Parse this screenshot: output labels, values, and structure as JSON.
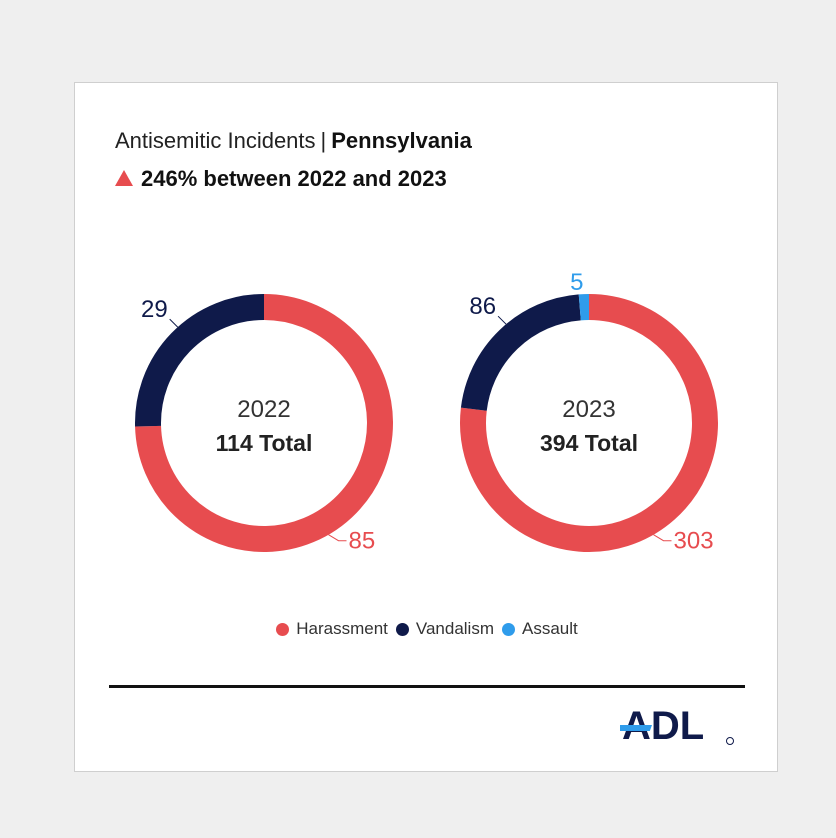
{
  "header": {
    "title_prefix": "Antisemitic Incidents",
    "title_separator": "|",
    "title_state": "Pennsylvania",
    "change_text": "246% between 2022 and 2023",
    "change_icon": "up-triangle-icon"
  },
  "colors": {
    "harassment": "#e74c4f",
    "vandalism": "#0f1a4a",
    "assault": "#2f9ceb"
  },
  "chart_data": [
    {
      "type": "pie",
      "donut": true,
      "year": "2022",
      "total_label": "114 Total",
      "series": [
        {
          "name": "Harassment",
          "value": 85,
          "label": "85"
        },
        {
          "name": "Vandalism",
          "value": 29,
          "label": "29"
        }
      ]
    },
    {
      "type": "pie",
      "donut": true,
      "year": "2023",
      "total_label": "394 Total",
      "series": [
        {
          "name": "Harassment",
          "value": 303,
          "label": "303"
        },
        {
          "name": "Vandalism",
          "value": 86,
          "label": "86"
        },
        {
          "name": "Assault",
          "value": 5,
          "label": "5"
        }
      ]
    }
  ],
  "legend": [
    {
      "name": "Harassment",
      "color": "#e74c4f"
    },
    {
      "name": "Vandalism",
      "color": "#0f1a4a"
    },
    {
      "name": "Assault",
      "color": "#2f9ceb"
    }
  ],
  "logo": {
    "text": "ADL",
    "icon": "adl-logo-icon"
  }
}
